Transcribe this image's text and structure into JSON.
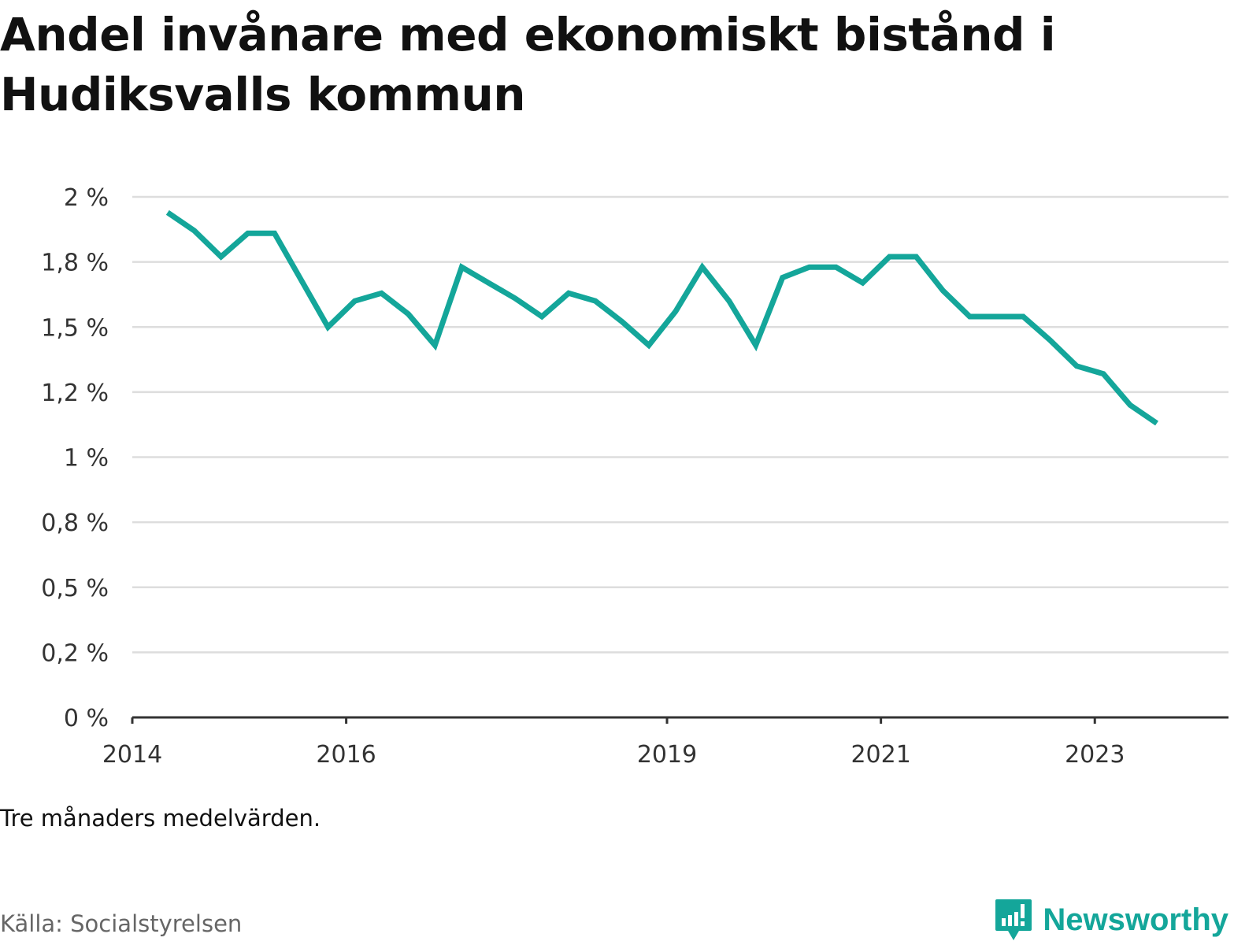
{
  "title": "Andel invånare med ekonomiskt bistånd i Hudiksvalls kommun",
  "note": "Tre månaders medelvärden.",
  "source": "Källa: Socialstyrelsen",
  "brand": {
    "name": "Newsworthy",
    "icon": "newsworthy-logo-icon",
    "color": "#14a69a"
  },
  "chart_data": {
    "type": "line",
    "title": "Andel invånare med ekonomiskt bistånd i Hudiksvalls kommun",
    "xlabel": "",
    "ylabel": "",
    "ylim": [
      0,
      2
    ],
    "y_ticks": [
      0,
      0.25,
      0.5,
      0.75,
      1,
      1.25,
      1.5,
      1.75,
      2
    ],
    "y_tick_labels": [
      "0 %",
      "0,2 %",
      "0,5 %",
      "0,8 %",
      "1 %",
      "1,2 %",
      "1,5 %",
      "1,8 %",
      "2 %"
    ],
    "x_ticks": [
      2014,
      2016,
      2019,
      2021,
      2023
    ],
    "x_tick_labels": [
      "2014",
      "2016",
      "2019",
      "2021",
      "2023"
    ],
    "xlim": [
      2014,
      2024.25
    ],
    "grid": true,
    "line_color": "#14a69a",
    "series": [
      {
        "x": [
          2014.33,
          2014.58,
          2014.83,
          2015.08,
          2015.33,
          2015.58,
          2015.83,
          2016.08,
          2016.33,
          2016.58,
          2016.83,
          2017.08,
          2017.33,
          2017.58,
          2017.83,
          2018.08,
          2018.33,
          2018.58,
          2018.83,
          2019.08,
          2019.33,
          2019.58,
          2019.83,
          2020.08,
          2020.33,
          2020.58,
          2020.83,
          2021.08,
          2021.33,
          2021.58,
          2021.83,
          2022.08,
          2022.33,
          2022.58,
          2022.83,
          2023.08,
          2023.33,
          2023.58
        ],
        "values": [
          1.94,
          1.87,
          1.77,
          1.86,
          1.86,
          1.68,
          1.5,
          1.6,
          1.63,
          1.55,
          1.43,
          1.73,
          1.67,
          1.61,
          1.54,
          1.63,
          1.6,
          1.52,
          1.43,
          1.56,
          1.73,
          1.6,
          1.43,
          1.69,
          1.73,
          1.73,
          1.67,
          1.77,
          1.77,
          1.64,
          1.54,
          1.54,
          1.54,
          1.45,
          1.35,
          1.32,
          1.2,
          1.13
        ]
      }
    ]
  }
}
